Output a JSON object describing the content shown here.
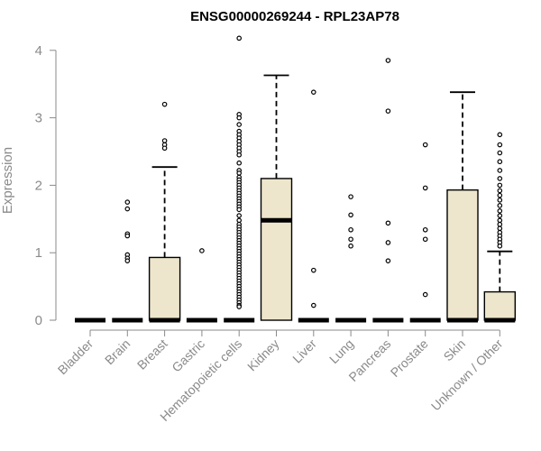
{
  "chart_data": {
    "type": "box",
    "title": "ENSG00000269244 - RPL23AP78",
    "ylabel": "Expression",
    "xlabel": "",
    "ylim": [
      0,
      4.2
    ],
    "yticks": [
      "0",
      "1",
      "2",
      "3",
      "4"
    ],
    "box_color": "#ede6cc",
    "categories": [
      "Bladder",
      "Brain",
      "Breast",
      "Gastric",
      "Hematopoietic cells",
      "Kidney",
      "Liver",
      "Lung",
      "Pancreas",
      "Prostate",
      "Skin",
      "Unknown / Other"
    ],
    "boxes": [
      {
        "q1": 0,
        "median": 0,
        "q3": 0,
        "whisker_low": 0,
        "whisker_high": 0,
        "outliers": []
      },
      {
        "q1": 0,
        "median": 0,
        "q3": 0,
        "whisker_low": 0,
        "whisker_high": 0,
        "outliers": [
          1.75,
          1.65,
          1.28,
          1.25,
          0.97,
          0.92,
          0.88
        ]
      },
      {
        "q1": 0,
        "median": 0,
        "q3": 0.93,
        "whisker_low": 0,
        "whisker_high": 2.27,
        "outliers": [
          3.2,
          2.66,
          2.6,
          2.55
        ]
      },
      {
        "q1": 0,
        "median": 0,
        "q3": 0,
        "whisker_low": 0,
        "whisker_high": 0,
        "outliers": [
          1.03
        ]
      },
      {
        "q1": 0,
        "median": 0,
        "q3": 0,
        "whisker_low": 0,
        "whisker_high": 0,
        "outliers": [
          4.18,
          3.05,
          3.0,
          2.9,
          2.8,
          2.75,
          2.7,
          2.65,
          2.6,
          2.55,
          2.5,
          2.45,
          2.33,
          2.22,
          2.18,
          2.12,
          2.08,
          2.04,
          2.0,
          1.96,
          1.92,
          1.88,
          1.84,
          1.8,
          1.76,
          1.72,
          1.68,
          1.64,
          1.55,
          1.48,
          1.42,
          1.38,
          1.34,
          1.3,
          1.26,
          1.22,
          1.18,
          1.14,
          1.1,
          1.06,
          1.02,
          0.98,
          0.94,
          0.9,
          0.86,
          0.82,
          0.78,
          0.74,
          0.7,
          0.66,
          0.62,
          0.58,
          0.54,
          0.5,
          0.46,
          0.42,
          0.38,
          0.34,
          0.3,
          0.26,
          0.22,
          0.2
        ]
      },
      {
        "q1": 0,
        "median": 1.48,
        "q3": 2.1,
        "whisker_low": 0,
        "whisker_high": 3.63,
        "outliers": []
      },
      {
        "q1": 0,
        "median": 0,
        "q3": 0,
        "whisker_low": 0,
        "whisker_high": 0,
        "outliers": [
          3.38,
          0.74,
          0.22
        ]
      },
      {
        "q1": 0,
        "median": 0,
        "q3": 0,
        "whisker_low": 0,
        "whisker_high": 0,
        "outliers": [
          1.83,
          1.56,
          1.34,
          1.2,
          1.1
        ]
      },
      {
        "q1": 0,
        "median": 0,
        "q3": 0,
        "whisker_low": 0,
        "whisker_high": 0,
        "outliers": [
          3.85,
          3.1,
          1.44,
          1.15,
          0.88
        ]
      },
      {
        "q1": 0,
        "median": 0,
        "q3": 0,
        "whisker_low": 0,
        "whisker_high": 0,
        "outliers": [
          2.6,
          1.96,
          1.34,
          1.2,
          0.38
        ]
      },
      {
        "q1": 0,
        "median": 0,
        "q3": 1.93,
        "whisker_low": 0,
        "whisker_high": 3.38,
        "outliers": []
      },
      {
        "q1": 0,
        "median": 0,
        "q3": 0.42,
        "whisker_low": 0,
        "whisker_high": 1.02,
        "outliers": [
          2.75,
          2.6,
          2.48,
          2.35,
          2.22,
          2.1,
          2.0,
          1.92,
          1.85,
          1.78,
          1.7,
          1.62,
          1.55,
          1.48,
          1.42,
          1.36,
          1.3,
          1.25,
          1.2,
          1.15,
          1.1
        ]
      }
    ]
  }
}
